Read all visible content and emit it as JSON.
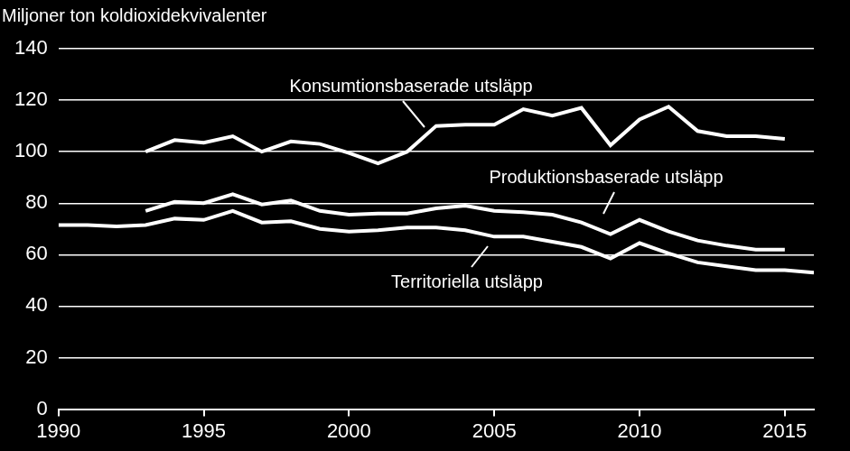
{
  "chart_data": {
    "type": "line",
    "ylabel": "Miljoner ton koldioxidekvivalenter",
    "x": [
      1990,
      1991,
      1992,
      1993,
      1994,
      1995,
      1996,
      1997,
      1998,
      1999,
      2000,
      2001,
      2002,
      2003,
      2004,
      2005,
      2006,
      2007,
      2008,
      2009,
      2010,
      2011,
      2012,
      2013,
      2014,
      2015,
      2016
    ],
    "series": [
      {
        "name": "Konsumtionsbaserade utsläpp",
        "color": "#ffffff",
        "values": [
          null,
          null,
          null,
          100,
          104.5,
          103.5,
          106,
          100,
          104,
          103,
          99.5,
          95.5,
          100,
          110,
          110.5,
          110.5,
          116.5,
          114,
          117,
          102.5,
          112.5,
          117.5,
          108,
          106,
          106,
          105,
          null
        ]
      },
      {
        "name": "Produktionsbaserade utsläpp",
        "color": "#ffffff",
        "values": [
          null,
          null,
          null,
          77,
          80.5,
          80,
          83.5,
          79.5,
          81,
          77,
          75.5,
          76,
          76,
          78,
          79,
          77,
          76.5,
          75.5,
          72.5,
          68,
          73.5,
          69,
          65.5,
          63.5,
          62,
          62,
          null
        ]
      },
      {
        "name": "Territoriella utsläpp",
        "color": "#ffffff",
        "values": [
          71.5,
          71.5,
          71,
          71.5,
          74,
          73.5,
          77,
          72.5,
          73,
          70,
          69,
          69.5,
          70.5,
          70.5,
          69.5,
          67,
          67,
          65,
          63,
          58.5,
          64.5,
          60.5,
          57,
          55.5,
          54,
          54,
          53
        ]
      }
    ],
    "xlim": [
      1990,
      2016
    ],
    "xticks": [
      1990,
      1995,
      2000,
      2005,
      2010,
      2015
    ],
    "ylim": [
      0,
      140
    ],
    "yticks": [
      0,
      20,
      40,
      60,
      80,
      100,
      120,
      140
    ],
    "grid": true
  }
}
